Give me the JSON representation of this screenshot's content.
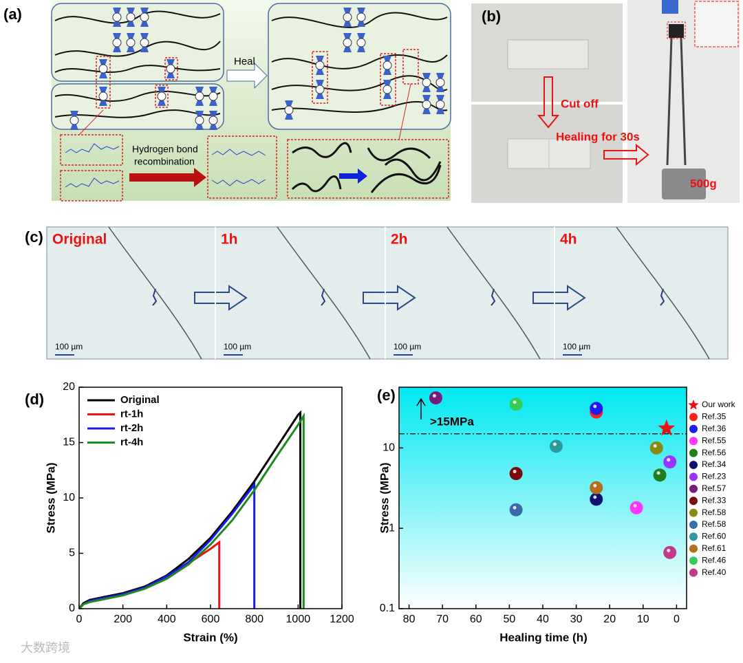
{
  "panel_a": {
    "label": "(a)",
    "heal": "Heal",
    "arrow_text": [
      "Hydrogen bond",
      "recombination"
    ]
  },
  "panel_b": {
    "label": "(b)",
    "cut": "Cut off",
    "healing": "Healing for 30s",
    "weight": "500g"
  },
  "panel_c": {
    "label": "(c)",
    "frames": [
      {
        "title": "Original",
        "scale": "100 µm"
      },
      {
        "title": "1h",
        "scale": "100 µm"
      },
      {
        "title": "2h",
        "scale": "100 µm"
      },
      {
        "title": "4h",
        "scale": "100 µm"
      }
    ]
  },
  "chart_data": [
    {
      "type": "line",
      "label": "(d)",
      "xlabel": "Strain (%)",
      "ylabel": "Stress (MPa)",
      "xlim": [
        0,
        1200
      ],
      "xticks": [
        0,
        200,
        400,
        600,
        800,
        1000,
        1200
      ],
      "ylim": [
        0,
        20
      ],
      "yticks": [
        0,
        5,
        10,
        15,
        20
      ],
      "legend": "upper left",
      "series": [
        {
          "name": "Original",
          "color": "#000000",
          "x": [
            0,
            20,
            50,
            100,
            200,
            300,
            400,
            500,
            600,
            700,
            800,
            900,
            1000,
            1010,
            1010
          ],
          "values": [
            0,
            0.5,
            0.8,
            1.0,
            1.4,
            2.0,
            3.0,
            4.5,
            6.4,
            8.8,
            11.5,
            14.5,
            17.5,
            17.7,
            0
          ]
        },
        {
          "name": "rt-1h",
          "color": "#ee1111",
          "x": [
            0,
            20,
            50,
            100,
            200,
            300,
            400,
            500,
            600,
            640,
            640
          ],
          "values": [
            0,
            0.4,
            0.7,
            0.9,
            1.3,
            1.9,
            2.9,
            4.1,
            5.4,
            6.0,
            0
          ]
        },
        {
          "name": "rt-2h",
          "color": "#1a1aee",
          "x": [
            0,
            20,
            50,
            100,
            200,
            300,
            400,
            500,
            600,
            700,
            800,
            800
          ],
          "values": [
            0,
            0.4,
            0.7,
            0.9,
            1.3,
            1.9,
            2.9,
            4.2,
            6.2,
            8.6,
            11.2,
            0
          ]
        },
        {
          "name": "rt-4h",
          "color": "#1e8a1e",
          "x": [
            0,
            20,
            50,
            100,
            200,
            300,
            400,
            500,
            600,
            700,
            800,
            900,
            1000,
            1025,
            1025
          ],
          "values": [
            0,
            0.4,
            0.6,
            0.8,
            1.2,
            1.8,
            2.7,
            4.0,
            5.8,
            8.0,
            10.7,
            13.7,
            16.6,
            17.4,
            0
          ]
        }
      ]
    },
    {
      "type": "scatter",
      "label": "(e)",
      "xlabel": "Healing time (h)",
      "ylabel": "Stress (MPa)",
      "xlim": [
        83,
        -3
      ],
      "xticks": [
        80,
        70,
        60,
        50,
        40,
        30,
        20,
        10,
        0
      ],
      "ylim": [
        0.1,
        57
      ],
      "yticks": [
        0.1,
        1,
        10
      ],
      "log_y": true,
      "legend": "right outside",
      "threshold": 15,
      "annotation": ">15MPa",
      "series": [
        {
          "name": "Our work",
          "color": "#ee1111",
          "marker": "star",
          "x": [
            3
          ],
          "values": [
            17.5
          ]
        },
        {
          "name": "Ref.35",
          "color": "#ff2020",
          "x": [
            24
          ],
          "values": [
            28
          ]
        },
        {
          "name": "Ref.36",
          "color": "#1a1aff",
          "x": [
            24
          ],
          "values": [
            31
          ]
        },
        {
          "name": "Ref.55",
          "color": "#ff33ff",
          "x": [
            12
          ],
          "values": [
            1.8
          ]
        },
        {
          "name": "Ref.56",
          "color": "#1e7d1e",
          "x": [
            5
          ],
          "values": [
            4.6
          ]
        },
        {
          "name": "Ref.34",
          "color": "#101070",
          "x": [
            24
          ],
          "values": [
            2.3
          ]
        },
        {
          "name": "Ref.23",
          "color": "#9933ff",
          "x": [
            2
          ],
          "values": [
            6.7
          ]
        },
        {
          "name": "Ref.57",
          "color": "#7a1a7a",
          "x": [
            72
          ],
          "values": [
            42
          ]
        },
        {
          "name": "Ref.33",
          "color": "#7a0a0a",
          "x": [
            48
          ],
          "values": [
            4.8
          ]
        },
        {
          "name": "Ref.58",
          "color": "#8a8a10",
          "x": [
            6
          ],
          "values": [
            10
          ]
        },
        {
          "name": "Ref.58",
          "color": "#3a6aa8",
          "x": [
            48
          ],
          "values": [
            1.7
          ]
        },
        {
          "name": "Ref.60",
          "color": "#2a9a9a",
          "x": [
            36
          ],
          "values": [
            10.5
          ]
        },
        {
          "name": "Ref.61",
          "color": "#b07020",
          "x": [
            24
          ],
          "values": [
            3.2
          ]
        },
        {
          "name": "Ref.46",
          "color": "#33cc55",
          "x": [
            48
          ],
          "values": [
            35
          ]
        },
        {
          "name": "Ref.40",
          "color": "#c03a8a",
          "x": [
            2
          ],
          "values": [
            0.5
          ]
        }
      ]
    }
  ],
  "watermark": "大数跨境"
}
